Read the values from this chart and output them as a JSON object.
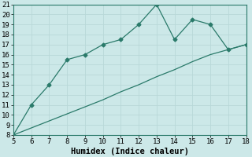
{
  "xlabel": "Humidex (Indice chaleur)",
  "bg_color": "#cce8e8",
  "grid_color": "#b8d8d8",
  "line_color": "#2a7a6a",
  "x_line1": [
    5,
    6,
    7,
    8,
    9,
    10,
    11,
    12,
    13,
    14,
    15,
    16,
    17,
    18
  ],
  "y_line1": [
    8,
    11,
    13,
    15.5,
    16,
    17,
    17.5,
    19,
    21,
    17.5,
    19.5,
    19,
    16.5,
    17
  ],
  "x_line2": [
    5,
    6,
    7,
    8,
    9,
    10,
    11,
    12,
    13,
    14,
    15,
    16,
    17,
    18
  ],
  "y_line2": [
    8,
    8.7,
    9.4,
    10.1,
    10.8,
    11.5,
    12.3,
    13.0,
    13.8,
    14.5,
    15.3,
    16.0,
    16.5,
    17.0
  ],
  "xlim": [
    5,
    18
  ],
  "ylim": [
    8,
    21
  ],
  "xticks": [
    5,
    6,
    7,
    8,
    9,
    10,
    11,
    12,
    13,
    14,
    15,
    16,
    17,
    18
  ],
  "yticks": [
    8,
    9,
    10,
    11,
    12,
    13,
    14,
    15,
    16,
    17,
    18,
    19,
    20,
    21
  ],
  "tick_fontsize": 6.5,
  "xlabel_fontsize": 7.5,
  "marker": "D",
  "markersize": 2.5,
  "linewidth": 0.9
}
